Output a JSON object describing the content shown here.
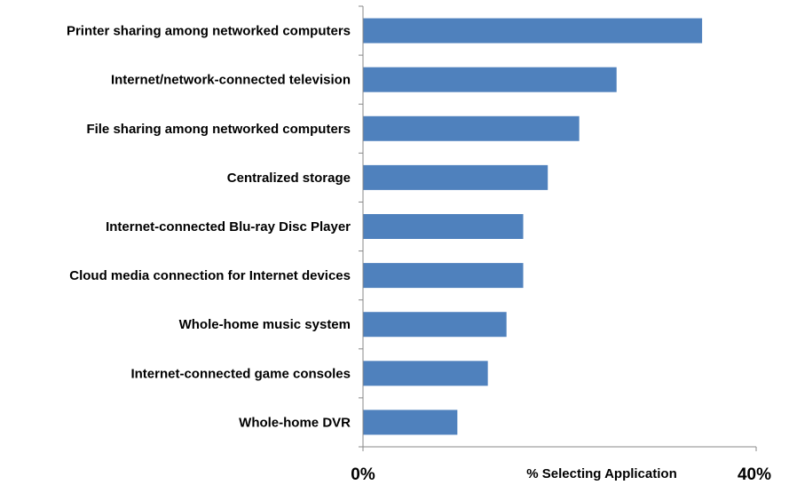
{
  "chart_data": {
    "type": "bar",
    "orientation": "horizontal",
    "categories": [
      "Printer sharing among networked computers",
      "Internet/network-connected television",
      "File sharing among networked computers",
      "Centralized storage",
      "Internet-connected Blu-ray Disc Player",
      "Cloud media connection for Internet devices",
      "Whole-home music system",
      "Internet-connected game consoles",
      "Whole-home DVR"
    ],
    "values": [
      34.5,
      25.8,
      22.0,
      18.8,
      16.3,
      16.3,
      14.6,
      12.7,
      9.6
    ],
    "xlabel": "% Selecting Application",
    "xlim": [
      0,
      40
    ],
    "x_ticks": [
      "0%",
      "40%"
    ],
    "bar_color": "#4f81bd",
    "grid": false
  }
}
